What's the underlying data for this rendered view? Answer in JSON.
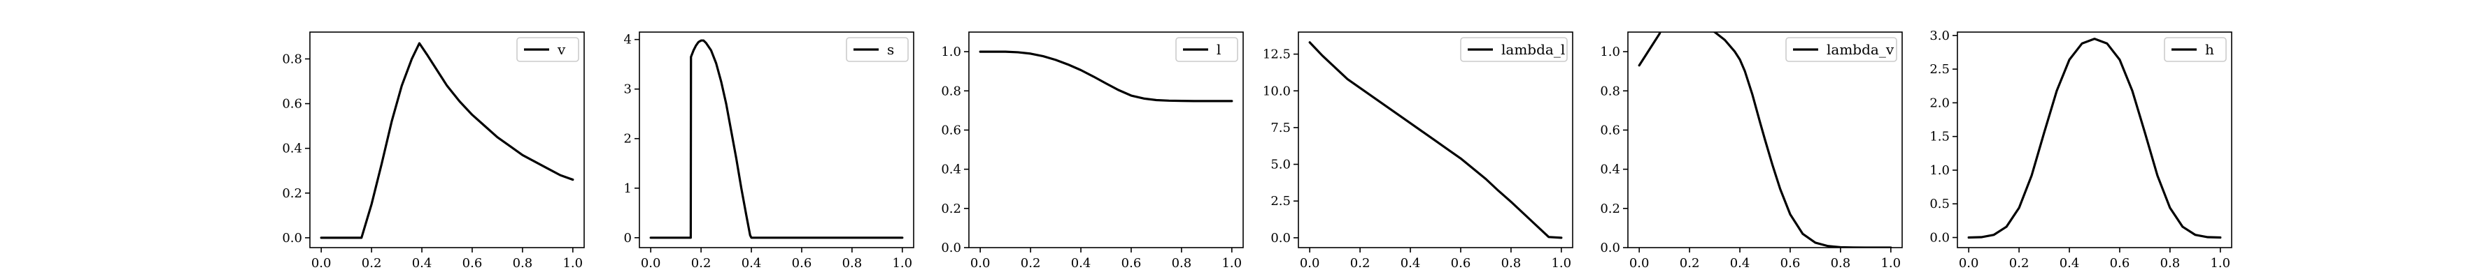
{
  "chart_data": [
    {
      "type": "line",
      "legend_position": "upper right",
      "xlim": [
        0.0,
        1.0
      ],
      "ylim": [
        -0.044,
        0.92
      ],
      "xticks": [
        "0.0",
        "0.2",
        "0.4",
        "0.6",
        "0.8",
        "1.0"
      ],
      "yticks": [
        "0.0",
        "0.2",
        "0.4",
        "0.6",
        "0.8"
      ],
      "series": [
        {
          "name": "v",
          "x": [
            0.0,
            0.05,
            0.1,
            0.15,
            0.16,
            0.2,
            0.24,
            0.28,
            0.32,
            0.36,
            0.39,
            0.42,
            0.46,
            0.5,
            0.55,
            0.6,
            0.65,
            0.7,
            0.75,
            0.8,
            0.85,
            0.9,
            0.95,
            1.0
          ],
          "y": [
            0.0,
            0.0,
            0.0,
            0.0,
            0.0,
            0.15,
            0.33,
            0.52,
            0.68,
            0.8,
            0.87,
            0.82,
            0.75,
            0.68,
            0.61,
            0.55,
            0.5,
            0.45,
            0.41,
            0.37,
            0.34,
            0.31,
            0.28,
            0.26
          ]
        }
      ]
    },
    {
      "type": "line",
      "legend_position": "upper right",
      "xlim": [
        0.0,
        1.0
      ],
      "ylim": [
        -0.2,
        4.15
      ],
      "xticks": [
        "0.0",
        "0.2",
        "0.4",
        "0.6",
        "0.8",
        "1.0"
      ],
      "yticks": [
        "0",
        "1",
        "2",
        "3",
        "4"
      ],
      "series": [
        {
          "name": "s",
          "x": [
            0.0,
            0.05,
            0.1,
            0.15,
            0.159,
            0.16,
            0.17,
            0.18,
            0.19,
            0.2,
            0.21,
            0.22,
            0.24,
            0.26,
            0.28,
            0.3,
            0.32,
            0.34,
            0.36,
            0.38,
            0.395,
            0.4,
            0.5,
            0.6,
            0.7,
            0.8,
            0.9,
            1.0
          ],
          "y": [
            0.0,
            0.0,
            0.0,
            0.0,
            0.0,
            3.65,
            3.78,
            3.88,
            3.95,
            3.98,
            3.98,
            3.93,
            3.78,
            3.52,
            3.15,
            2.7,
            2.15,
            1.6,
            1.0,
            0.45,
            0.05,
            0.0,
            0.0,
            0.0,
            0.0,
            0.0,
            0.0,
            0.0
          ]
        }
      ]
    },
    {
      "type": "line",
      "legend_position": "upper right",
      "xlim": [
        0.0,
        1.0
      ],
      "ylim": [
        0.0,
        1.1
      ],
      "xticks": [
        "0.0",
        "0.2",
        "0.4",
        "0.6",
        "0.8",
        "1.0"
      ],
      "yticks": [
        "0.0",
        "0.2",
        "0.4",
        "0.6",
        "0.8",
        "1.0"
      ],
      "series": [
        {
          "name": "l",
          "x": [
            0.0,
            0.1,
            0.15,
            0.2,
            0.25,
            0.3,
            0.35,
            0.4,
            0.45,
            0.5,
            0.55,
            0.6,
            0.65,
            0.7,
            0.75,
            0.8,
            0.85,
            0.9,
            1.0
          ],
          "y": [
            1.0,
            1.0,
            0.997,
            0.99,
            0.977,
            0.958,
            0.934,
            0.906,
            0.873,
            0.838,
            0.804,
            0.776,
            0.761,
            0.753,
            0.75,
            0.749,
            0.748,
            0.748,
            0.748
          ]
        }
      ]
    },
    {
      "type": "line",
      "legend_position": "upper right",
      "xlim": [
        0.0,
        1.0
      ],
      "ylim": [
        -0.67,
        14.0
      ],
      "xticks": [
        "0.0",
        "0.2",
        "0.4",
        "0.6",
        "0.8",
        "1.0"
      ],
      "yticks": [
        "0.0",
        "2.5",
        "5.0",
        "7.5",
        "10.0",
        "12.5"
      ],
      "series": [
        {
          "name": "lambda_l",
          "x": [
            0.0,
            0.05,
            0.1,
            0.15,
            0.2,
            0.25,
            0.3,
            0.35,
            0.4,
            0.45,
            0.5,
            0.55,
            0.6,
            0.65,
            0.7,
            0.75,
            0.8,
            0.85,
            0.9,
            0.95,
            1.0
          ],
          "y": [
            13.3,
            12.4,
            11.6,
            10.8,
            10.2,
            9.6,
            9.0,
            8.4,
            7.8,
            7.2,
            6.6,
            6.0,
            5.4,
            4.7,
            4.0,
            3.2,
            2.45,
            1.65,
            0.85,
            0.05,
            0.0
          ]
        }
      ]
    },
    {
      "type": "line",
      "legend_position": "upper right",
      "xlim": [
        0.0,
        1.0
      ],
      "ylim": [
        0.0,
        1.1
      ],
      "xticks": [
        "0.0",
        "0.2",
        "0.4",
        "0.6",
        "0.8",
        "1.0"
      ],
      "yticks": [
        "0.0",
        "0.2",
        "0.4",
        "0.6",
        "0.8",
        "1.0"
      ],
      "series": [
        {
          "name": "lambda_v",
          "x": [
            0.0,
            0.03,
            0.06,
            0.08,
            0.09,
            0.15,
            0.2,
            0.25,
            0.28,
            0.3,
            0.34,
            0.38,
            0.4,
            0.42,
            0.45,
            0.48,
            0.5,
            0.53,
            0.56,
            0.6,
            0.65,
            0.7,
            0.75,
            0.8,
            0.85,
            0.9,
            0.95,
            1.0
          ],
          "y": [
            0.93,
            0.99,
            1.05,
            1.09,
            1.12,
            1.15,
            1.16,
            1.14,
            1.12,
            1.1,
            1.06,
            1.0,
            0.96,
            0.9,
            0.78,
            0.64,
            0.55,
            0.42,
            0.3,
            0.17,
            0.07,
            0.025,
            0.008,
            0.002,
            0.0005,
            0.0,
            0.0,
            0.0
          ]
        }
      ]
    },
    {
      "type": "line",
      "legend_position": "upper right",
      "xlim": [
        0.0,
        1.0
      ],
      "ylim": [
        -0.15,
        3.05
      ],
      "xticks": [
        "0.0",
        "0.2",
        "0.4",
        "0.6",
        "0.8",
        "1.0"
      ],
      "yticks": [
        "0.0",
        "0.5",
        "1.0",
        "1.5",
        "2.0",
        "2.5",
        "3.0"
      ],
      "series": [
        {
          "name": "h",
          "x": [
            0.0,
            0.05,
            0.1,
            0.15,
            0.2,
            0.25,
            0.3,
            0.35,
            0.4,
            0.45,
            0.5,
            0.55,
            0.6,
            0.65,
            0.7,
            0.75,
            0.8,
            0.85,
            0.9,
            0.95,
            1.0
          ],
          "y": [
            0.0,
            0.005,
            0.04,
            0.16,
            0.44,
            0.92,
            1.56,
            2.18,
            2.64,
            2.88,
            2.95,
            2.88,
            2.64,
            2.18,
            1.56,
            0.92,
            0.44,
            0.16,
            0.04,
            0.005,
            0.0
          ]
        }
      ]
    }
  ]
}
